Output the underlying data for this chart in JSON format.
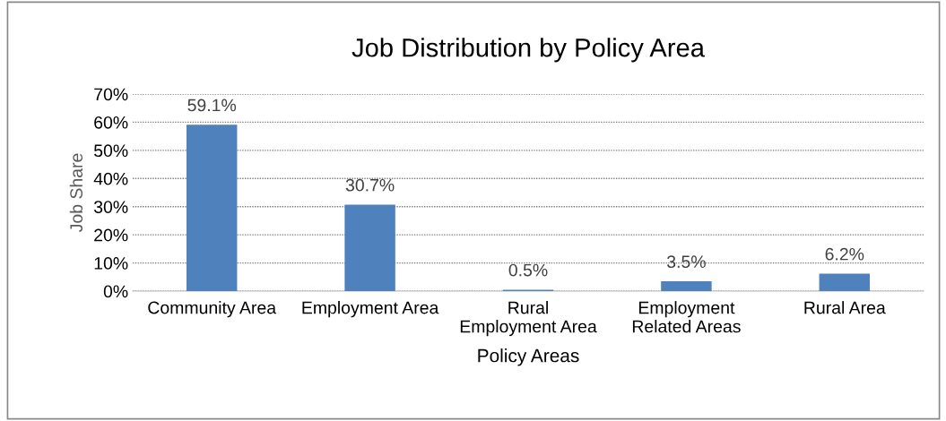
{
  "chart_data": {
    "type": "bar",
    "title": "Job Distribution by Policy Area",
    "xlabel": "Policy Areas",
    "ylabel": "Job Share",
    "categories": [
      "Community Area",
      "Employment Area",
      "Rural\nEmployment Area",
      "Employment\nRelated Areas",
      "Rural Area"
    ],
    "values": [
      59.1,
      30.7,
      0.5,
      3.5,
      6.2
    ],
    "value_labels": [
      "59.1%",
      "30.7%",
      "0.5%",
      "3.5%",
      "6.2%"
    ],
    "color": "#4f81bd",
    "ylim": [
      0,
      70
    ],
    "yticks": [
      {
        "value": 0,
        "label": "0%"
      },
      {
        "value": 10,
        "label": "10%"
      },
      {
        "value": 20,
        "label": "20%"
      },
      {
        "value": 30,
        "label": "30%"
      },
      {
        "value": 40,
        "label": "40%"
      },
      {
        "value": 50,
        "label": "50%"
      },
      {
        "value": 60,
        "label": "60%"
      },
      {
        "value": 70,
        "label": "70%"
      }
    ],
    "grid": "y",
    "legend": false
  }
}
